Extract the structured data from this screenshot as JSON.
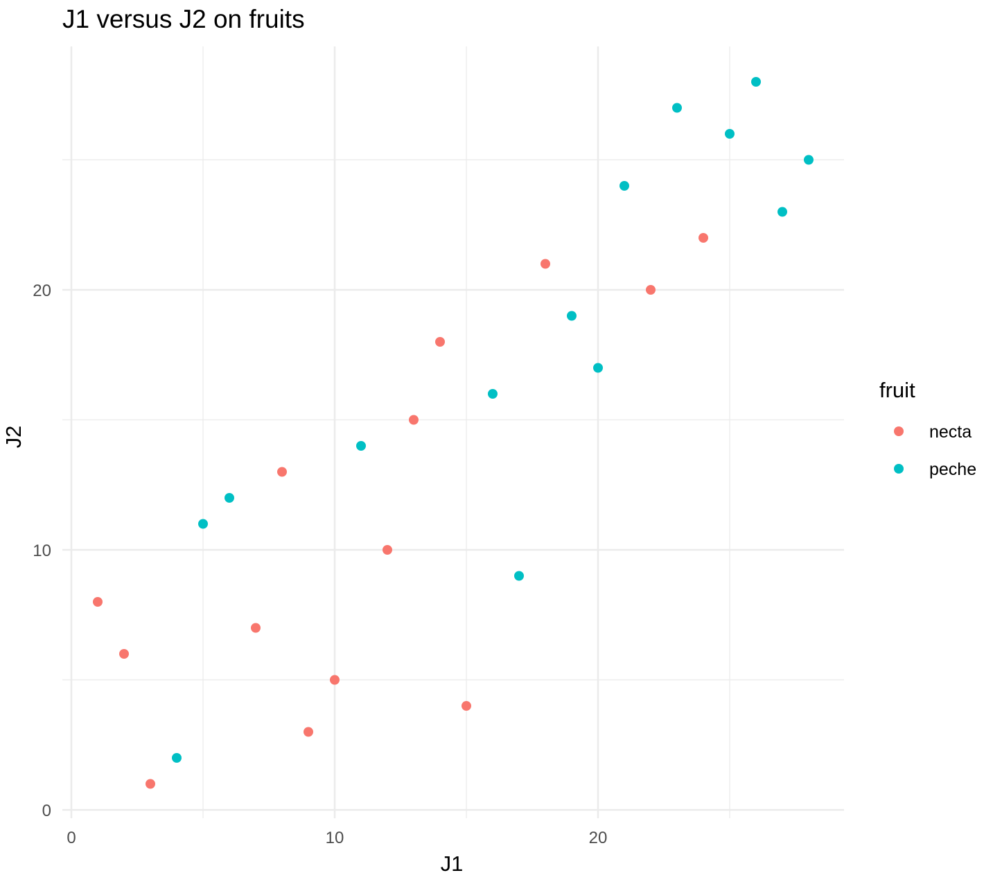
{
  "chart_data": {
    "type": "scatter",
    "title": "J1 versus J2 on fruits",
    "xlabel": "J1",
    "ylabel": "J2",
    "xlim": [
      0,
      29.3
    ],
    "ylim": [
      0,
      29.3
    ],
    "x_ticks": [
      0,
      10,
      20
    ],
    "y_ticks": [
      0,
      10,
      20
    ],
    "grid": true,
    "legend": {
      "title": "fruit",
      "position": "right"
    },
    "series": [
      {
        "name": "necta",
        "color": "#F8766D",
        "points": [
          {
            "x": 1,
            "y": 8
          },
          {
            "x": 2,
            "y": 6
          },
          {
            "x": 3,
            "y": 1
          },
          {
            "x": 7,
            "y": 7
          },
          {
            "x": 8,
            "y": 13
          },
          {
            "x": 9,
            "y": 3
          },
          {
            "x": 10,
            "y": 5
          },
          {
            "x": 12,
            "y": 10
          },
          {
            "x": 13,
            "y": 15
          },
          {
            "x": 14,
            "y": 18
          },
          {
            "x": 15,
            "y": 4
          },
          {
            "x": 18,
            "y": 21
          },
          {
            "x": 22,
            "y": 20
          },
          {
            "x": 24,
            "y": 22
          }
        ]
      },
      {
        "name": "peche",
        "color": "#00BFC4",
        "points": [
          {
            "x": 4,
            "y": 2
          },
          {
            "x": 5,
            "y": 11
          },
          {
            "x": 6,
            "y": 12
          },
          {
            "x": 11,
            "y": 14
          },
          {
            "x": 16,
            "y": 16
          },
          {
            "x": 17,
            "y": 9
          },
          {
            "x": 19,
            "y": 19
          },
          {
            "x": 20,
            "y": 17
          },
          {
            "x": 21,
            "y": 24
          },
          {
            "x": 23,
            "y": 27
          },
          {
            "x": 25,
            "y": 26
          },
          {
            "x": 26,
            "y": 28
          },
          {
            "x": 27,
            "y": 23
          },
          {
            "x": 28,
            "y": 25
          }
        ]
      }
    ]
  }
}
